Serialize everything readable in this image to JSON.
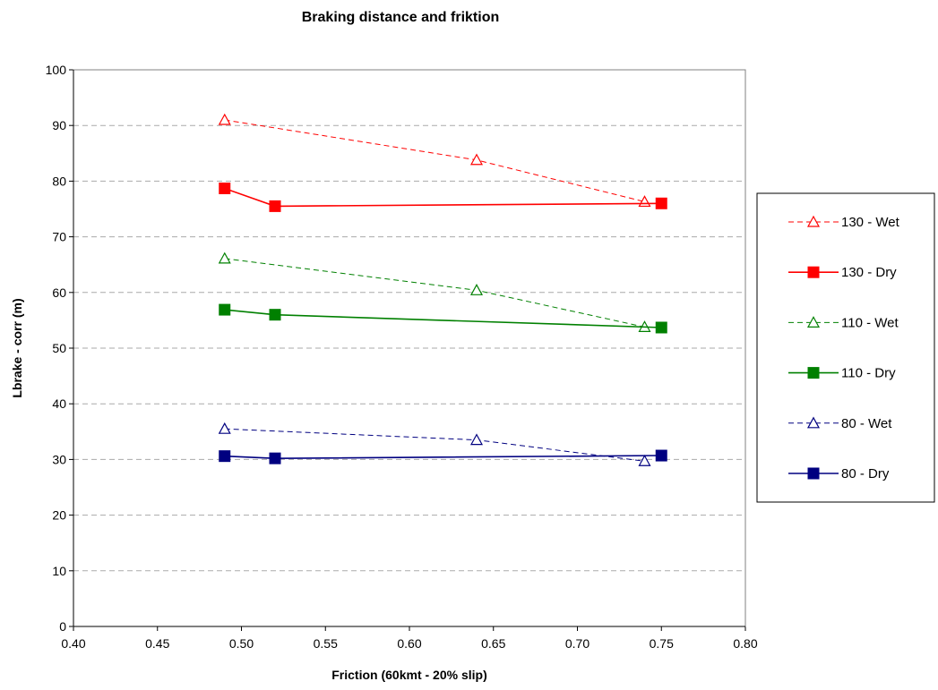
{
  "chart_data": {
    "type": "line",
    "title": "Braking distance and friktion",
    "xlabel": "Friction (60kmt - 20% slip)",
    "ylabel": "Lbrake - corr (m)",
    "xlim": [
      0.4,
      0.8
    ],
    "ylim": [
      0,
      100
    ],
    "x_ticks": [
      "0.40",
      "0.45",
      "0.50",
      "0.55",
      "0.60",
      "0.65",
      "0.70",
      "0.75",
      "0.80"
    ],
    "y_ticks": [
      "0",
      "10",
      "20",
      "30",
      "40",
      "50",
      "60",
      "70",
      "80",
      "90",
      "100"
    ],
    "grid": "horizontal dashed",
    "legend_position": "right",
    "series": [
      {
        "name": "130 - Wet",
        "color": "#ff0000",
        "line": "dashed",
        "marker": "open-triangle",
        "points": [
          [
            0.49,
            91
          ],
          [
            0.64,
            83.8
          ],
          [
            0.74,
            76.3
          ]
        ]
      },
      {
        "name": "130 - Dry",
        "color": "#ff0000",
        "line": "solid",
        "marker": "filled-square",
        "points": [
          [
            0.49,
            78.7
          ],
          [
            0.52,
            75.5
          ],
          [
            0.75,
            76
          ]
        ]
      },
      {
        "name": "110 - Wet",
        "color": "#008000",
        "line": "dashed",
        "marker": "open-triangle",
        "points": [
          [
            0.49,
            66.1
          ],
          [
            0.64,
            60.4
          ],
          [
            0.74,
            53.8
          ]
        ]
      },
      {
        "name": "110 - Dry",
        "color": "#008000",
        "line": "solid",
        "marker": "filled-square",
        "points": [
          [
            0.49,
            56.9
          ],
          [
            0.52,
            56
          ],
          [
            0.75,
            53.7
          ]
        ]
      },
      {
        "name": "80 - Wet",
        "color": "#000080",
        "line": "dashed",
        "marker": "open-triangle",
        "points": [
          [
            0.49,
            35.5
          ],
          [
            0.64,
            33.5
          ],
          [
            0.74,
            29.7
          ]
        ]
      },
      {
        "name": "80 - Dry",
        "color": "#000080",
        "line": "solid",
        "marker": "filled-square",
        "points": [
          [
            0.49,
            30.6
          ],
          [
            0.52,
            30.2
          ],
          [
            0.75,
            30.7
          ]
        ]
      }
    ]
  }
}
